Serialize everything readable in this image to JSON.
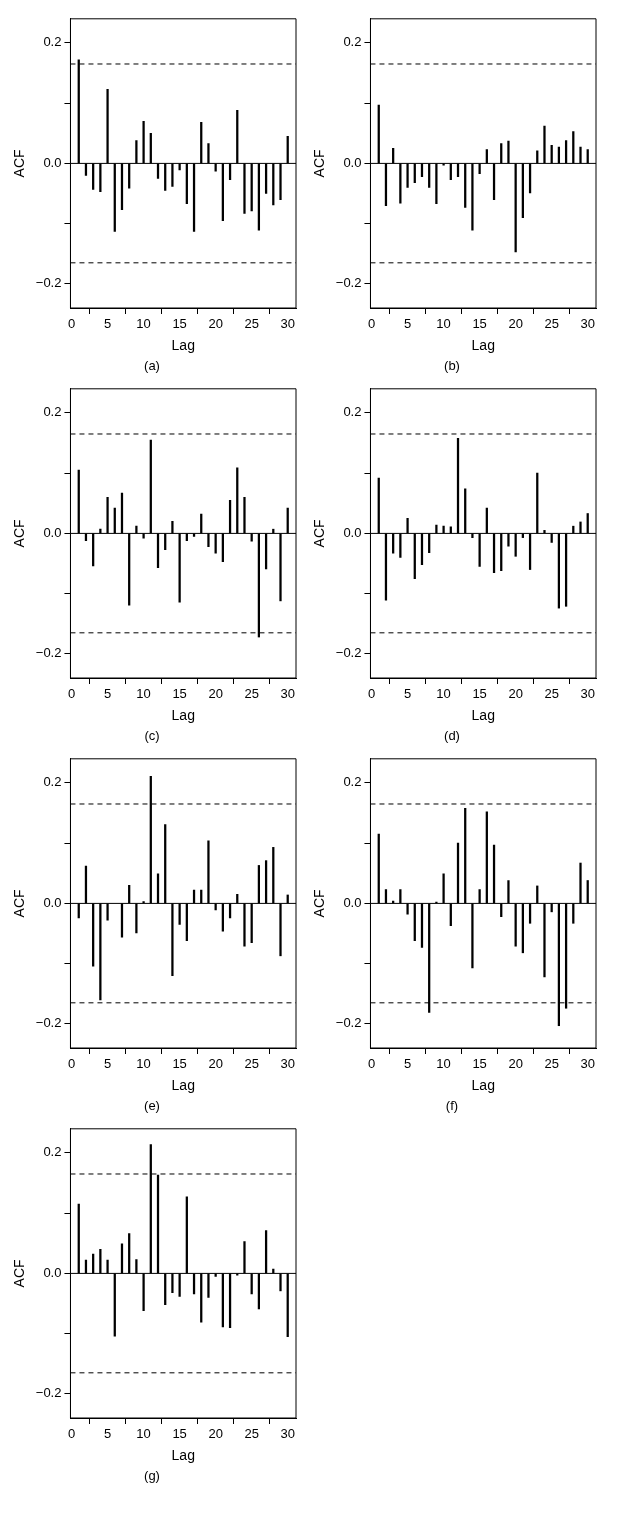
{
  "chart_data": [
    {
      "type": "bar",
      "title": "(a)",
      "xlabel": "Lag",
      "ylabel": "ACF",
      "x": [
        1,
        2,
        3,
        4,
        5,
        6,
        7,
        8,
        9,
        10,
        11,
        12,
        13,
        14,
        15,
        16,
        17,
        18,
        19,
        20,
        21,
        22,
        23,
        24,
        25,
        26,
        27,
        28,
        29,
        30
      ],
      "series": [
        {
          "color": "#000000",
          "values": [
            0.172,
            -0.02,
            -0.043,
            -0.047,
            0.123,
            -0.113,
            -0.077,
            -0.041,
            0.038,
            0.07,
            0.05,
            -0.025,
            -0.045,
            -0.038,
            -0.011,
            -0.067,
            -0.113,
            0.068,
            0.033,
            -0.013,
            -0.095,
            -0.027,
            0.088,
            -0.083,
            -0.079,
            -0.111,
            -0.05,
            -0.069,
            -0.06,
            0.045
          ]
        }
      ],
      "xlim": [
        -0.15,
        31.15
      ],
      "xticks": [
        0,
        5,
        10,
        15,
        20,
        25,
        30
      ],
      "ylim": [
        -0.24,
        0.24
      ],
      "yticks": [
        {
          "value": -0.2,
          "label": "−0.2"
        },
        {
          "value": -0.1,
          "label": null
        },
        {
          "value": 0,
          "label": "0.0"
        },
        {
          "value": 0.1,
          "label": null
        },
        {
          "value": 0.2,
          "label": "0.2"
        }
      ],
      "ref_lines": [
        {
          "axis": "y",
          "value": 0,
          "line_style": "solid",
          "color": "#000000"
        },
        {
          "axis": "y",
          "value": 0.165,
          "line_style": "dashed",
          "color": "#000000"
        },
        {
          "axis": "y",
          "value": -0.165,
          "line_style": "dashed",
          "color": "#000000"
        }
      ],
      "grid": false,
      "legend": false
    },
    {
      "type": "bar",
      "title": "(b)",
      "xlabel": "Lag",
      "ylabel": "ACF",
      "x": [
        1,
        2,
        3,
        4,
        5,
        6,
        7,
        8,
        9,
        10,
        11,
        12,
        13,
        14,
        15,
        16,
        17,
        18,
        19,
        20,
        21,
        22,
        23,
        24,
        25,
        26,
        27,
        28,
        29,
        30
      ],
      "series": [
        {
          "color": "#000000",
          "values": [
            0.097,
            -0.07,
            0.025,
            -0.066,
            -0.04,
            -0.032,
            -0.022,
            -0.04,
            -0.067,
            -0.003,
            -0.027,
            -0.022,
            -0.073,
            -0.111,
            -0.017,
            0.023,
            -0.06,
            0.033,
            0.037,
            -0.147,
            -0.09,
            -0.049,
            0.021,
            0.062,
            0.03,
            0.027,
            0.038,
            0.053,
            0.027,
            0.023
          ]
        }
      ],
      "xlim": [
        -0.15,
        31.15
      ],
      "xticks": [
        0,
        5,
        10,
        15,
        20,
        25,
        30
      ],
      "ylim": [
        -0.24,
        0.24
      ],
      "yticks": [
        {
          "value": -0.2,
          "label": "−0.2"
        },
        {
          "value": -0.1,
          "label": null
        },
        {
          "value": 0,
          "label": "0.0"
        },
        {
          "value": 0.1,
          "label": null
        },
        {
          "value": 0.2,
          "label": "0.2"
        }
      ],
      "ref_lines": [
        {
          "axis": "y",
          "value": 0,
          "line_style": "solid",
          "color": "#000000"
        },
        {
          "axis": "y",
          "value": 0.165,
          "line_style": "dashed",
          "color": "#000000"
        },
        {
          "axis": "y",
          "value": -0.165,
          "line_style": "dashed",
          "color": "#000000"
        }
      ],
      "grid": false,
      "legend": false
    },
    {
      "type": "bar",
      "title": "(c)",
      "xlabel": "Lag",
      "ylabel": "ACF",
      "x": [
        1,
        2,
        3,
        4,
        5,
        6,
        7,
        8,
        9,
        10,
        11,
        12,
        13,
        14,
        15,
        16,
        17,
        18,
        19,
        20,
        21,
        22,
        23,
        24,
        25,
        26,
        27,
        28,
        29,
        30
      ],
      "series": [
        {
          "color": "#000000",
          "values": [
            0.105,
            -0.012,
            -0.054,
            0.007,
            0.06,
            0.042,
            0.067,
            -0.119,
            0.012,
            -0.008,
            0.155,
            -0.057,
            -0.027,
            0.02,
            -0.114,
            -0.012,
            -0.005,
            0.032,
            -0.022,
            -0.033,
            -0.047,
            0.055,
            0.109,
            0.06,
            -0.013,
            -0.172,
            -0.059,
            0.007,
            -0.112,
            0.042
          ]
        }
      ],
      "xlim": [
        -0.15,
        31.15
      ],
      "xticks": [
        0,
        5,
        10,
        15,
        20,
        25,
        30
      ],
      "ylim": [
        -0.24,
        0.24
      ],
      "yticks": [
        {
          "value": -0.2,
          "label": "−0.2"
        },
        {
          "value": -0.1,
          "label": null
        },
        {
          "value": 0,
          "label": "0.0"
        },
        {
          "value": 0.1,
          "label": null
        },
        {
          "value": 0.2,
          "label": "0.2"
        }
      ],
      "ref_lines": [
        {
          "axis": "y",
          "value": 0,
          "line_style": "solid",
          "color": "#000000"
        },
        {
          "axis": "y",
          "value": 0.165,
          "line_style": "dashed",
          "color": "#000000"
        },
        {
          "axis": "y",
          "value": -0.165,
          "line_style": "dashed",
          "color": "#000000"
        }
      ],
      "grid": false,
      "legend": false
    },
    {
      "type": "bar",
      "title": "(d)",
      "xlabel": "Lag",
      "ylabel": "ACF",
      "x": [
        1,
        2,
        3,
        4,
        5,
        6,
        7,
        8,
        9,
        10,
        11,
        12,
        13,
        14,
        15,
        16,
        17,
        18,
        19,
        20,
        21,
        22,
        23,
        24,
        25,
        26,
        27,
        28,
        29,
        30
      ],
      "series": [
        {
          "color": "#000000",
          "values": [
            0.092,
            -0.111,
            -0.033,
            -0.04,
            0.025,
            -0.075,
            -0.052,
            -0.032,
            0.014,
            0.012,
            0.011,
            0.158,
            0.074,
            -0.007,
            -0.055,
            0.042,
            -0.065,
            -0.062,
            -0.021,
            -0.038,
            -0.007,
            -0.06,
            0.1,
            0.005,
            -0.015,
            -0.124,
            -0.121,
            0.012,
            0.019,
            0.033
          ]
        }
      ],
      "xlim": [
        -0.15,
        31.15
      ],
      "xticks": [
        0,
        5,
        10,
        15,
        20,
        25,
        30
      ],
      "ylim": [
        -0.24,
        0.24
      ],
      "yticks": [
        {
          "value": -0.2,
          "label": "−0.2"
        },
        {
          "value": -0.1,
          "label": null
        },
        {
          "value": 0,
          "label": "0.0"
        },
        {
          "value": 0.1,
          "label": null
        },
        {
          "value": 0.2,
          "label": "0.2"
        }
      ],
      "ref_lines": [
        {
          "axis": "y",
          "value": 0,
          "line_style": "solid",
          "color": "#000000"
        },
        {
          "axis": "y",
          "value": 0.165,
          "line_style": "dashed",
          "color": "#000000"
        },
        {
          "axis": "y",
          "value": -0.165,
          "line_style": "dashed",
          "color": "#000000"
        }
      ],
      "grid": false,
      "legend": false
    },
    {
      "type": "bar",
      "title": "(e)",
      "xlabel": "Lag",
      "ylabel": "ACF",
      "x": [
        1,
        2,
        3,
        4,
        5,
        6,
        7,
        8,
        9,
        10,
        11,
        12,
        13,
        14,
        15,
        16,
        17,
        18,
        19,
        20,
        21,
        22,
        23,
        24,
        25,
        26,
        27,
        28,
        29,
        30
      ],
      "series": [
        {
          "color": "#000000",
          "values": [
            -0.024,
            0.062,
            -0.104,
            -0.16,
            -0.028,
            null,
            -0.056,
            0.03,
            -0.049,
            0.003,
            0.211,
            0.049,
            0.131,
            -0.12,
            -0.035,
            -0.062,
            0.022,
            0.022,
            0.104,
            -0.011,
            -0.046,
            -0.024,
            0.015,
            -0.071,
            -0.065,
            0.063,
            0.071,
            0.093,
            -0.087,
            0.014
          ]
        }
      ],
      "xlim": [
        -0.15,
        31.15
      ],
      "xticks": [
        0,
        5,
        10,
        15,
        20,
        25,
        30
      ],
      "ylim": [
        -0.24,
        0.24
      ],
      "yticks": [
        {
          "value": -0.2,
          "label": "−0.2"
        },
        {
          "value": -0.1,
          "label": null
        },
        {
          "value": 0,
          "label": "0.0"
        },
        {
          "value": 0.1,
          "label": null
        },
        {
          "value": 0.2,
          "label": "0.2"
        }
      ],
      "ref_lines": [
        {
          "axis": "y",
          "value": 0,
          "line_style": "solid",
          "color": "#000000"
        },
        {
          "axis": "y",
          "value": 0.165,
          "line_style": "dashed",
          "color": "#000000"
        },
        {
          "axis": "y",
          "value": -0.165,
          "line_style": "dashed",
          "color": "#000000"
        }
      ],
      "grid": false,
      "legend": false
    },
    {
      "type": "bar",
      "title": "(f)",
      "xlabel": "Lag",
      "ylabel": "ACF",
      "x": [
        1,
        2,
        3,
        4,
        5,
        6,
        7,
        8,
        9,
        10,
        11,
        12,
        13,
        14,
        15,
        16,
        17,
        18,
        19,
        20,
        21,
        22,
        23,
        24,
        25,
        26,
        27,
        28,
        29,
        30
      ],
      "series": [
        {
          "color": "#000000",
          "values": [
            0.115,
            0.023,
            0.004,
            0.023,
            -0.018,
            -0.062,
            -0.073,
            -0.181,
            0.002,
            0.049,
            -0.037,
            0.1,
            0.158,
            -0.107,
            0.023,
            0.152,
            0.097,
            -0.022,
            0.038,
            -0.071,
            -0.082,
            -0.033,
            0.029,
            -0.122,
            -0.014,
            -0.203,
            -0.174,
            -0.033,
            0.067,
            0.038
          ]
        }
      ],
      "xlim": [
        -0.15,
        31.15
      ],
      "xticks": [
        0,
        5,
        10,
        15,
        20,
        25,
        30
      ],
      "ylim": [
        -0.24,
        0.24
      ],
      "yticks": [
        {
          "value": -0.2,
          "label": "−0.2"
        },
        {
          "value": -0.1,
          "label": null
        },
        {
          "value": 0,
          "label": "0.0"
        },
        {
          "value": 0.1,
          "label": null
        },
        {
          "value": 0.2,
          "label": "0.2"
        }
      ],
      "ref_lines": [
        {
          "axis": "y",
          "value": 0,
          "line_style": "solid",
          "color": "#000000"
        },
        {
          "axis": "y",
          "value": 0.165,
          "line_style": "dashed",
          "color": "#000000"
        },
        {
          "axis": "y",
          "value": -0.165,
          "line_style": "dashed",
          "color": "#000000"
        }
      ],
      "grid": false,
      "legend": false
    },
    {
      "type": "bar",
      "title": "(g)",
      "xlabel": "Lag",
      "ylabel": "ACF",
      "x": [
        1,
        2,
        3,
        4,
        5,
        6,
        7,
        8,
        9,
        10,
        11,
        12,
        13,
        14,
        15,
        16,
        17,
        18,
        19,
        20,
        21,
        22,
        23,
        24,
        25,
        26,
        27,
        28,
        29,
        30
      ],
      "series": [
        {
          "color": "#000000",
          "values": [
            0.115,
            0.022,
            0.032,
            0.04,
            0.022,
            -0.104,
            0.049,
            0.066,
            0.023,
            -0.062,
            0.214,
            0.163,
            -0.052,
            -0.032,
            -0.038,
            0.127,
            -0.034,
            -0.081,
            -0.04,
            -0.005,
            -0.089,
            -0.09,
            -0.003,
            0.053,
            -0.034,
            -0.059,
            0.071,
            0.007,
            -0.029,
            -0.105
          ]
        }
      ],
      "xlim": [
        -0.15,
        31.15
      ],
      "xticks": [
        0,
        5,
        10,
        15,
        20,
        25,
        30
      ],
      "ylim": [
        -0.24,
        0.24
      ],
      "yticks": [
        {
          "value": -0.2,
          "label": "−0.2"
        },
        {
          "value": -0.1,
          "label": null
        },
        {
          "value": 0,
          "label": "0.0"
        },
        {
          "value": 0.1,
          "label": null
        },
        {
          "value": 0.2,
          "label": "0.2"
        }
      ],
      "ref_lines": [
        {
          "axis": "y",
          "value": 0,
          "line_style": "solid",
          "color": "#000000"
        },
        {
          "axis": "y",
          "value": 0.165,
          "line_style": "dashed",
          "color": "#000000"
        },
        {
          "axis": "y",
          "value": -0.165,
          "line_style": "dashed",
          "color": "#000000"
        }
      ],
      "grid": false,
      "legend": false
    }
  ]
}
